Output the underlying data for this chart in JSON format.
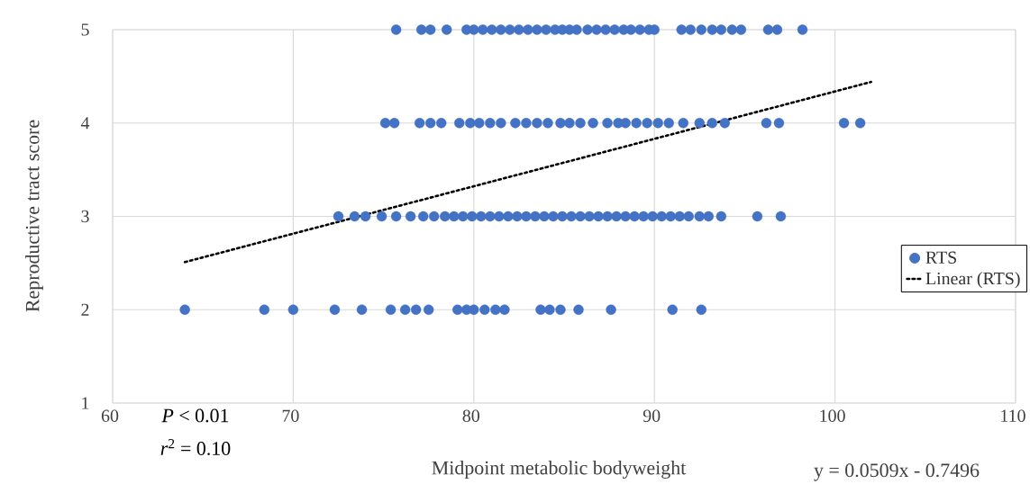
{
  "chart_data": {
    "type": "scatter",
    "xlabel": "Midpoint metabolic bodyweight",
    "ylabel": "Reproductive tract score",
    "xlim": [
      60,
      110
    ],
    "ylim": [
      1,
      5
    ],
    "xticks": [
      60,
      70,
      80,
      90,
      100,
      110
    ],
    "yticks": [
      1,
      2,
      3,
      4,
      5
    ],
    "grid": true,
    "legend": "right",
    "annotations": [
      "*P* < 0.01",
      "*r*$^{2}$ = 0.10",
      "y = 0.0509x - 0.7496"
    ],
    "series": [
      {
        "name": "RTS",
        "marker": "circle",
        "color": "#4472c4",
        "x": [
          75.7,
          77.1,
          77.6,
          78.5,
          79.6,
          80.0,
          80.5,
          81.0,
          81.5,
          82.0,
          82.5,
          83.0,
          83.5,
          84.0,
          84.5,
          84.9,
          85.3,
          85.7,
          86.3,
          86.8,
          87.3,
          87.8,
          88.3,
          88.7,
          89.2,
          89.7,
          90.0,
          91.5,
          92.0,
          92.6,
          93.2,
          93.7,
          94.3,
          94.8,
          96.3,
          96.8,
          98.2,
          75.1,
          75.6,
          77.0,
          77.6,
          78.2,
          79.2,
          79.8,
          80.3,
          80.9,
          81.5,
          82.3,
          82.9,
          83.5,
          84.1,
          84.8,
          85.3,
          85.9,
          86.6,
          87.4,
          88.0,
          88.4,
          89.0,
          89.6,
          90.2,
          90.8,
          91.6,
          92.5,
          93.2,
          93.9,
          96.2,
          96.9,
          100.5,
          101.4,
          72.5,
          73.4,
          74.0,
          74.9,
          75.7,
          76.5,
          77.2,
          77.8,
          78.4,
          78.9,
          79.4,
          79.9,
          80.4,
          80.9,
          81.4,
          81.9,
          82.4,
          82.9,
          83.4,
          83.9,
          84.4,
          84.9,
          85.4,
          85.9,
          86.4,
          86.9,
          87.4,
          87.9,
          88.4,
          88.9,
          89.4,
          89.9,
          90.4,
          90.9,
          91.4,
          91.9,
          92.5,
          93.0,
          93.7,
          95.7,
          97.0,
          64.0,
          68.4,
          70.0,
          72.3,
          73.8,
          75.4,
          76.2,
          76.8,
          77.5,
          79.1,
          79.6,
          80.0,
          80.6,
          81.2,
          81.7,
          83.7,
          84.2,
          84.8,
          85.8,
          87.6,
          91.0,
          92.6
        ],
        "values": [
          5,
          5,
          5,
          5,
          5,
          5,
          5,
          5,
          5,
          5,
          5,
          5,
          5,
          5,
          5,
          5,
          5,
          5,
          5,
          5,
          5,
          5,
          5,
          5,
          5,
          5,
          5,
          5,
          5,
          5,
          5,
          5,
          5,
          5,
          5,
          5,
          5,
          4,
          4,
          4,
          4,
          4,
          4,
          4,
          4,
          4,
          4,
          4,
          4,
          4,
          4,
          4,
          4,
          4,
          4,
          4,
          4,
          4,
          4,
          4,
          4,
          4,
          4,
          4,
          4,
          4,
          4,
          4,
          4,
          4,
          3,
          3,
          3,
          3,
          3,
          3,
          3,
          3,
          3,
          3,
          3,
          3,
          3,
          3,
          3,
          3,
          3,
          3,
          3,
          3,
          3,
          3,
          3,
          3,
          3,
          3,
          3,
          3,
          3,
          3,
          3,
          3,
          3,
          3,
          3,
          3,
          3,
          3,
          3,
          3,
          3,
          2,
          2,
          2,
          2,
          2,
          2,
          2,
          2,
          2,
          2,
          2,
          2,
          2,
          2,
          2,
          2,
          2,
          2,
          2,
          2,
          2,
          2
        ]
      },
      {
        "name": "Linear (RTS)",
        "type": "line",
        "marker": "none",
        "line_style": "dotted",
        "color": "#000000",
        "x": [
          64.0,
          102.0
        ],
        "values": [
          2.51,
          4.44
        ]
      }
    ]
  }
}
